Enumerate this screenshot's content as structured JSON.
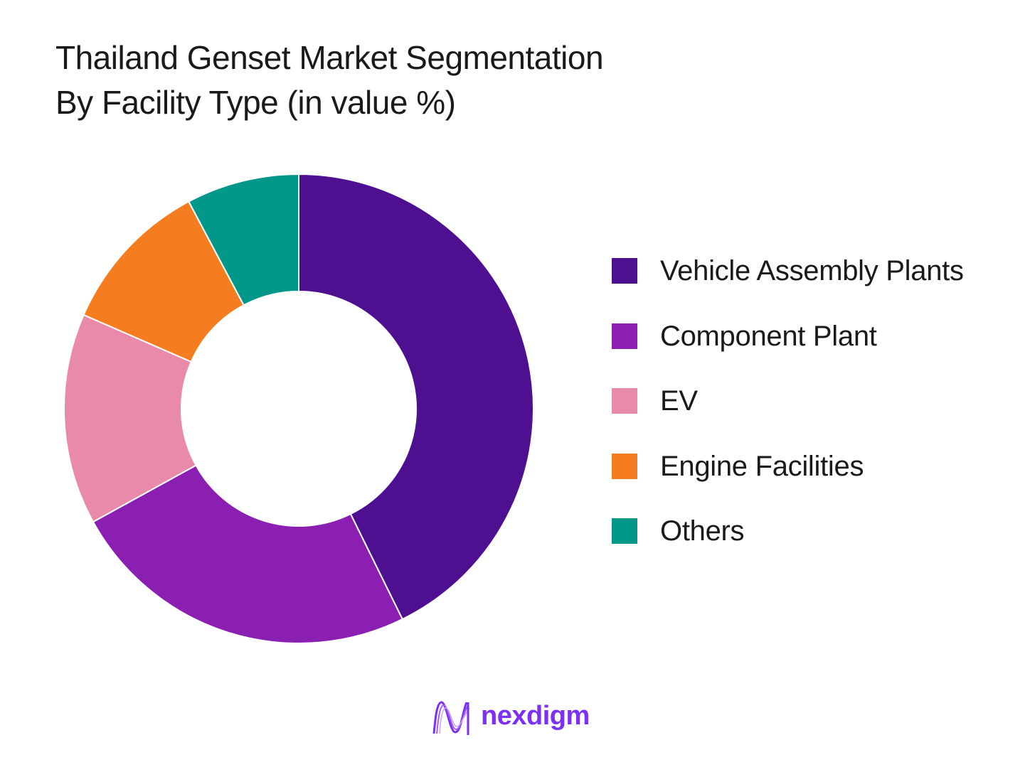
{
  "chart_data": {
    "type": "pie",
    "title": "Thailand Genset Market Segmentation",
    "subtitle": "By Facility Type (in value %)",
    "donut": true,
    "categories": [
      "Vehicle Assembly Plants",
      "Component Plant",
      "EV",
      "Engine Facilities",
      "Others"
    ],
    "values": [
      44,
      25,
      15,
      11,
      8
    ],
    "colors": [
      "#4e0f91",
      "#8a1fb2",
      "#ea8aaa",
      "#f57d1f",
      "#019789"
    ],
    "legend_placement": "right"
  },
  "brand": {
    "name": "nexdigm",
    "color": "#7b2ff7",
    "icon": "nexdigm-logo-icon"
  }
}
